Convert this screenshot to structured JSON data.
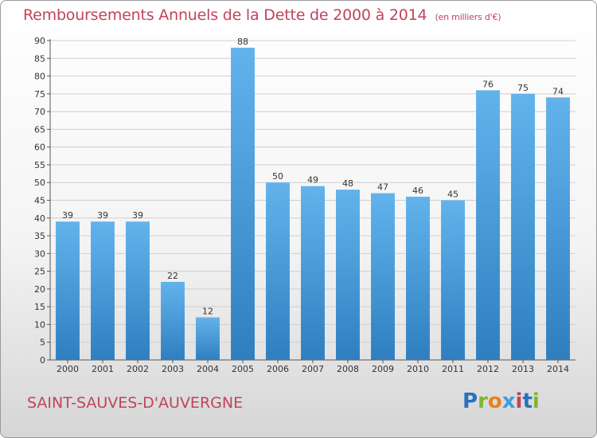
{
  "title": "Remboursements Annuels de la Dette de 2000 à 2014",
  "unit": "(en milliers d'€)",
  "commune": "SAINT-SAUVES-D'AUVERGNE",
  "logo": {
    "letters": [
      "P",
      "r",
      "o",
      "x",
      "i",
      "t",
      "i"
    ],
    "colors": [
      "#2a6fc0",
      "#7cb82f",
      "#e8821e",
      "#3b9fd8",
      "#c0445c",
      "#2a6fc0",
      "#7cb82f"
    ]
  },
  "colors": {
    "bar_top": "#62b3ec",
    "bar_bottom": "#2f7fc0",
    "accent": "#c0445c"
  },
  "chart_data": {
    "type": "bar",
    "categories": [
      "2000",
      "2001",
      "2002",
      "2003",
      "2004",
      "2005",
      "2006",
      "2007",
      "2008",
      "2009",
      "2010",
      "2011",
      "2012",
      "2013",
      "2014"
    ],
    "values": [
      39,
      39,
      39,
      22,
      12,
      88,
      50,
      49,
      48,
      47,
      46,
      45,
      76,
      75,
      74
    ],
    "ylim": [
      0,
      90
    ],
    "yticks": [
      0,
      5,
      10,
      15,
      20,
      25,
      30,
      35,
      40,
      45,
      50,
      55,
      60,
      65,
      70,
      75,
      80,
      85,
      90
    ],
    "grid": true
  }
}
